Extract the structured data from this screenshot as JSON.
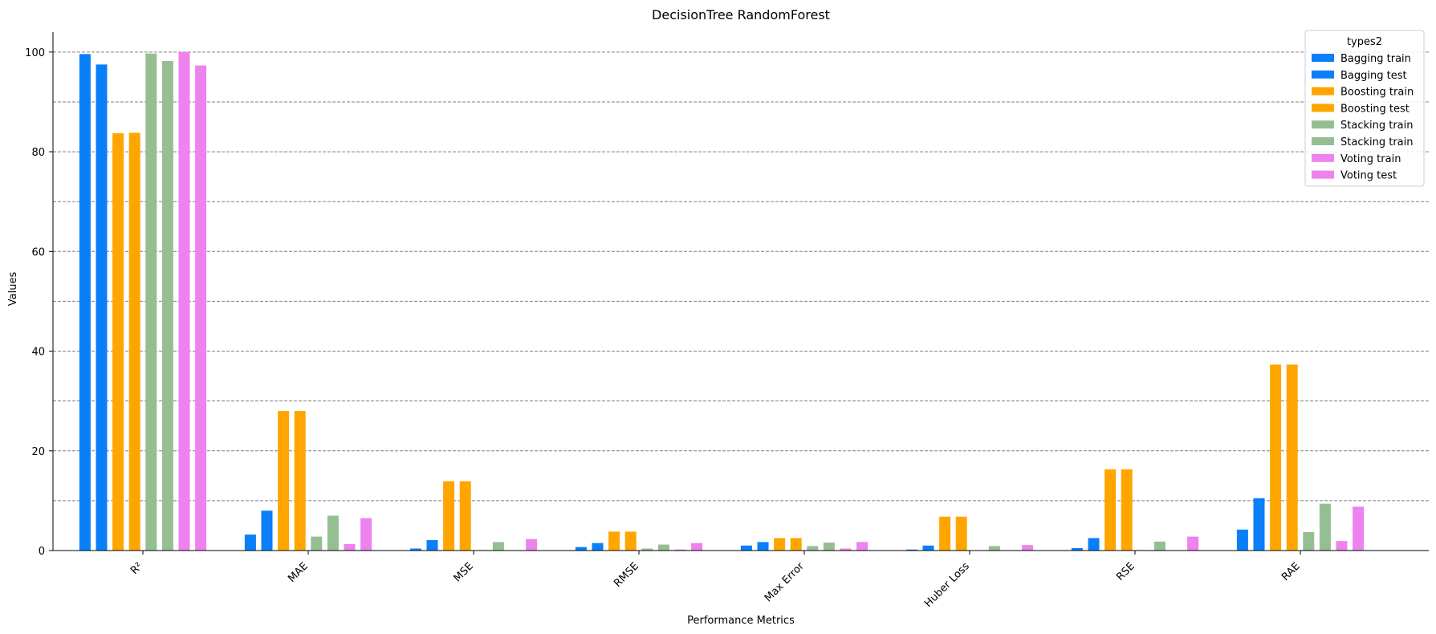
{
  "chart_data": {
    "type": "bar",
    "title": "DecisionTree RandomForest",
    "xlabel": "Performance Metrics",
    "ylabel": "Values",
    "ylim": [
      0,
      104
    ],
    "yticks": [
      "0",
      "20",
      "40",
      "60",
      "80",
      "100"
    ],
    "grid": "horizontal dashed",
    "legend_title": "types2",
    "legend_position": "top-right",
    "categories": [
      "R²",
      "MAE",
      "MSE",
      "RMSE",
      "Max Error",
      "Huber Loss",
      "RSE",
      "RAE"
    ],
    "series": [
      {
        "name": "Bagging train",
        "color": "#0a7ff7",
        "values": [
          99.6,
          3.2,
          0.4,
          0.7,
          1.0,
          0.2,
          0.5,
          4.2
        ]
      },
      {
        "name": "Bagging test",
        "color": "#0a7ff7",
        "values": [
          97.5,
          8.0,
          2.1,
          1.5,
          1.7,
          1.0,
          2.5,
          10.5
        ]
      },
      {
        "name": "Boosting train",
        "color": "#ffa500",
        "values": [
          83.7,
          28.0,
          13.9,
          3.8,
          2.5,
          6.8,
          16.3,
          37.3
        ]
      },
      {
        "name": "Boosting test",
        "color": "#ffa500",
        "values": [
          83.8,
          28.0,
          13.9,
          3.8,
          2.5,
          6.8,
          16.3,
          37.3
        ]
      },
      {
        "name": "Stacking train",
        "color": "#95bf92",
        "values": [
          99.7,
          2.8,
          0.1,
          0.4,
          0.9,
          0.0,
          0.1,
          3.7
        ]
      },
      {
        "name": "Stacking train",
        "color": "#95bf92",
        "values": [
          98.2,
          7.0,
          1.7,
          1.2,
          1.6,
          0.9,
          1.8,
          9.4
        ]
      },
      {
        "name": "Voting train",
        "color": "#ee82ee",
        "values": [
          100.0,
          1.3,
          0.0,
          0.2,
          0.4,
          0.0,
          0.0,
          1.9
        ]
      },
      {
        "name": "Voting test",
        "color": "#ee82ee",
        "values": [
          97.3,
          6.5,
          2.3,
          1.5,
          1.7,
          1.1,
          2.8,
          8.8
        ]
      }
    ]
  }
}
